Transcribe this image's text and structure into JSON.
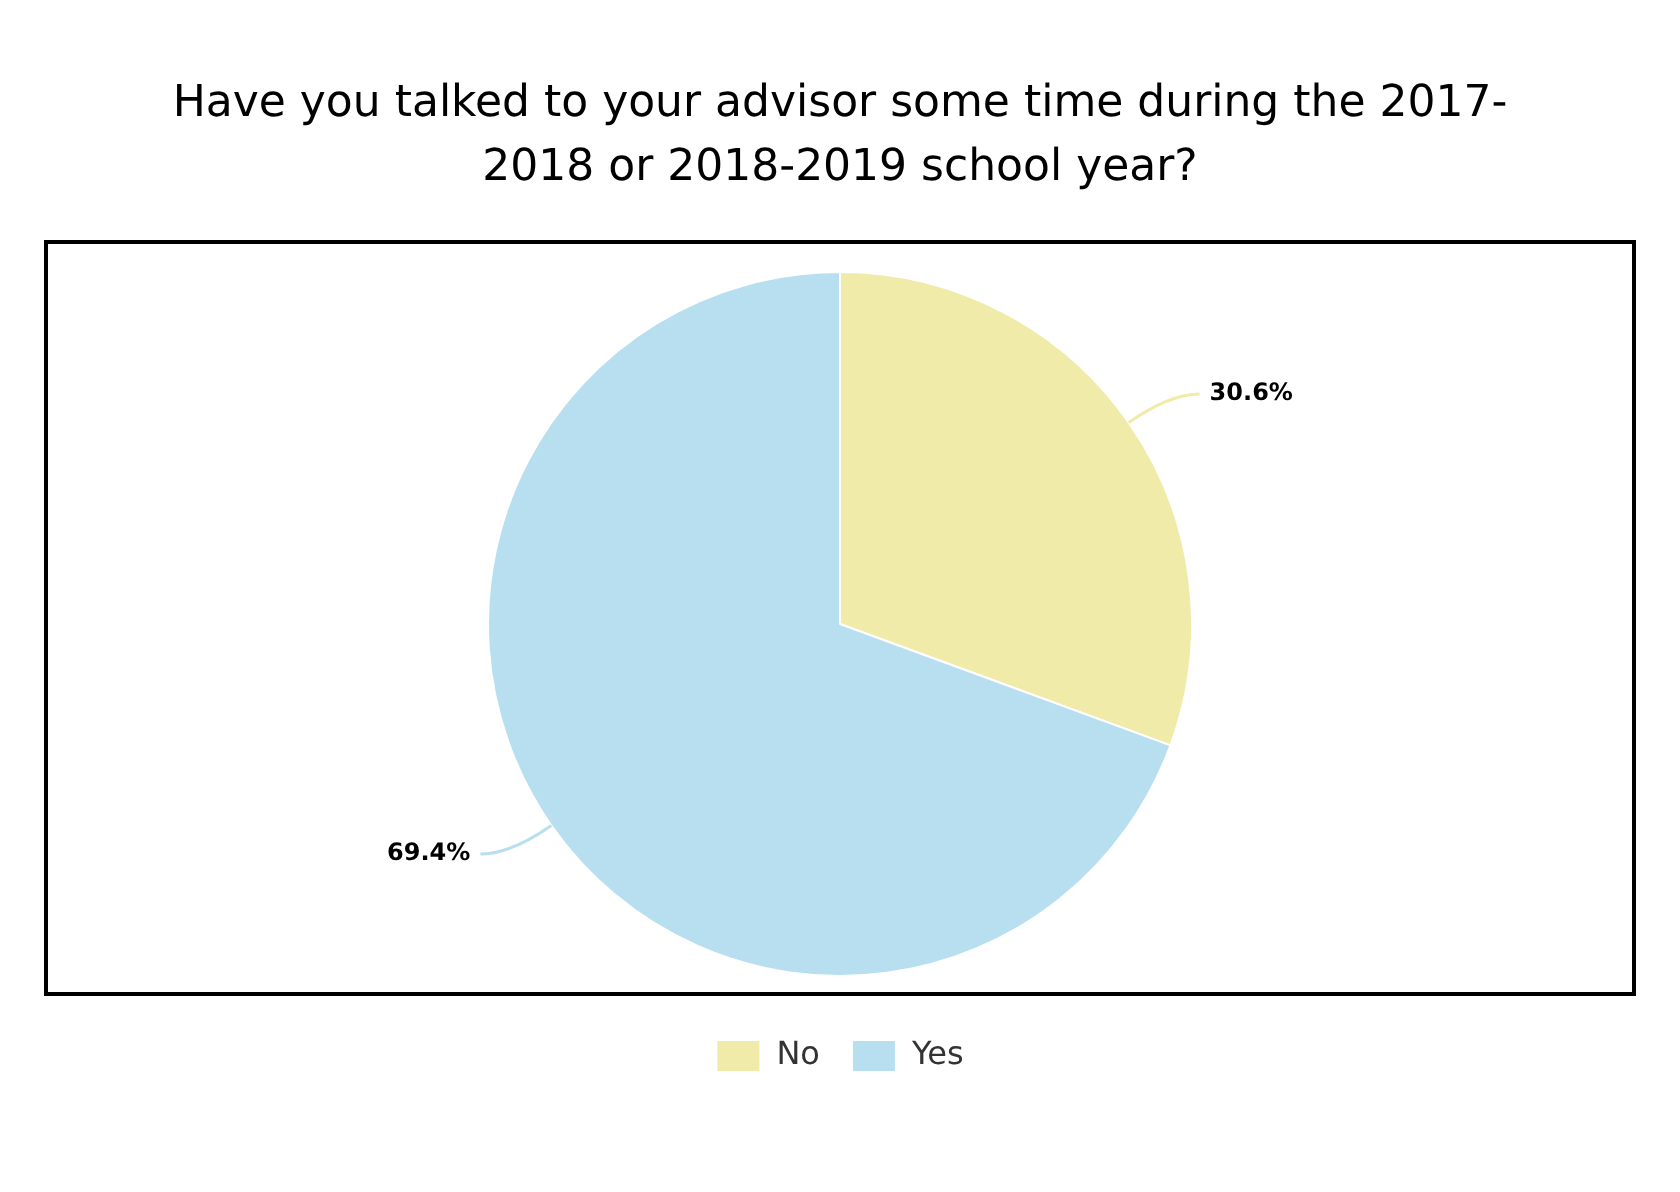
{
  "chart_data": {
    "type": "pie",
    "title": "Have you talked to your advisor some time during the 2017-2018 or 2018-2019 school year?",
    "categories": [
      "No",
      "Yes"
    ],
    "values": [
      30.6,
      69.4
    ],
    "colors": [
      "#f0eba8",
      "#b8dff0"
    ],
    "value_labels": [
      "30.6%",
      "69.4%"
    ],
    "legend": "bottom"
  }
}
